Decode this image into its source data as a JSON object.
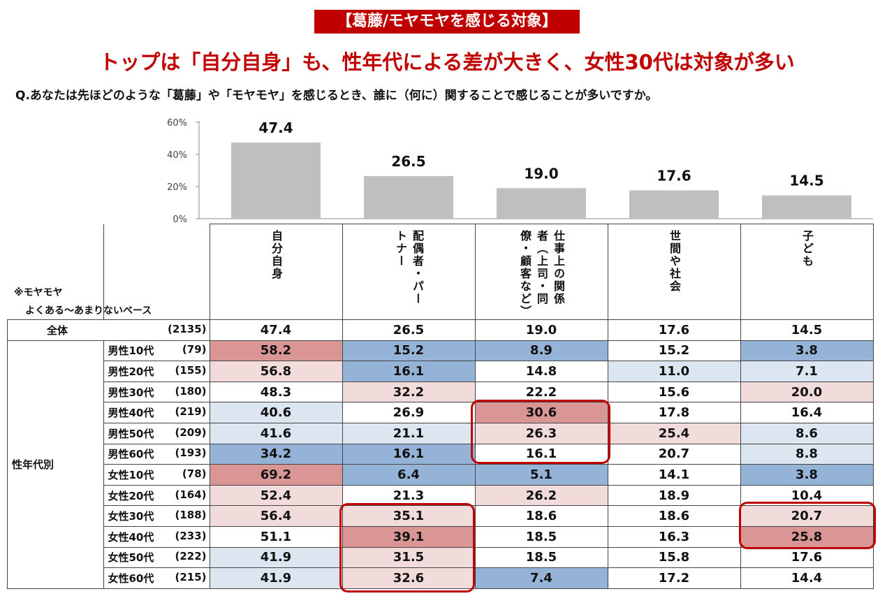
{
  "badge": "【葛藤/モヤモヤを感じる対象】",
  "headline": "トップは「自分自身」も、性年代による差が大きく、女性30代は対象が多い",
  "question": "Q.あなたは先ほどのような「葛藤」や「モヤモヤ」を感じるとき、誰に（何に）関することで感じることが多いですか。",
  "note1": "※モヤモヤ",
  "note2": "よくある～あまりないベース",
  "group_label": "性年代別",
  "colors": {
    "strong_red": "#d99694",
    "light_red": "#f2dcdb",
    "strong_blue": "#95b3d7",
    "light_blue": "#dce6f1",
    "bar": "#bfbfbf",
    "accent": "#c00000"
  },
  "chart_data": {
    "type": "bar",
    "categories": [
      "自分自身",
      "配偶者・パートナー",
      "仕事上の関係者（上司・同僚・顧客など）",
      "世間や社会",
      "子ども"
    ],
    "values": [
      47.4,
      26.5,
      19.0,
      17.6,
      14.5
    ],
    "yticks": [
      "0%",
      "20%",
      "40%",
      "60%"
    ],
    "ylim": [
      0,
      60
    ]
  },
  "table": {
    "columns": [
      "自分自身",
      "配偶者・パートナー",
      "仕事上の関係者（上司・同僚・顧客など）",
      "世間や社会",
      "子ども"
    ],
    "total": {
      "label": "全体",
      "n": "(2135)",
      "values": [
        "47.4",
        "26.5",
        "19.0",
        "17.6",
        "14.5"
      ]
    },
    "rows": [
      {
        "label": "男性10代",
        "n": "(79)",
        "values": [
          "58.2",
          "15.2",
          "8.9",
          "15.2",
          "3.8"
        ],
        "shade": [
          "R",
          "B",
          "B",
          "",
          "B"
        ]
      },
      {
        "label": "男性20代",
        "n": "(155)",
        "values": [
          "56.8",
          "16.1",
          "14.8",
          "11.0",
          "7.1"
        ],
        "shade": [
          "r",
          "B",
          "",
          "b",
          "b"
        ]
      },
      {
        "label": "男性30代",
        "n": "(180)",
        "values": [
          "48.3",
          "32.2",
          "22.2",
          "15.6",
          "20.0"
        ],
        "shade": [
          "",
          "r",
          "",
          "",
          "r"
        ]
      },
      {
        "label": "男性40代",
        "n": "(219)",
        "values": [
          "40.6",
          "26.9",
          "30.6",
          "17.8",
          "16.4"
        ],
        "shade": [
          "b",
          "",
          "R",
          "",
          ""
        ]
      },
      {
        "label": "男性50代",
        "n": "(209)",
        "values": [
          "41.6",
          "21.1",
          "26.3",
          "25.4",
          "8.6"
        ],
        "shade": [
          "b",
          "b",
          "r",
          "r",
          "b"
        ]
      },
      {
        "label": "男性60代",
        "n": "(193)",
        "values": [
          "34.2",
          "16.1",
          "16.1",
          "20.7",
          "8.8"
        ],
        "shade": [
          "B",
          "B",
          "",
          "",
          "b"
        ]
      },
      {
        "label": "女性10代",
        "n": "(78)",
        "values": [
          "69.2",
          "6.4",
          "5.1",
          "14.1",
          "3.8"
        ],
        "shade": [
          "R",
          "B",
          "B",
          "",
          "B"
        ]
      },
      {
        "label": "女性20代",
        "n": "(164)",
        "values": [
          "52.4",
          "21.3",
          "26.2",
          "18.9",
          "10.4"
        ],
        "shade": [
          "r",
          "",
          "r",
          "",
          ""
        ]
      },
      {
        "label": "女性30代",
        "n": "(188)",
        "values": [
          "56.4",
          "35.1",
          "18.6",
          "18.6",
          "20.7"
        ],
        "shade": [
          "r",
          "r",
          "",
          "",
          "r"
        ]
      },
      {
        "label": "女性40代",
        "n": "(233)",
        "values": [
          "51.1",
          "39.1",
          "18.5",
          "16.3",
          "25.8"
        ],
        "shade": [
          "",
          "R",
          "",
          "",
          "R"
        ]
      },
      {
        "label": "女性50代",
        "n": "(222)",
        "values": [
          "41.9",
          "31.5",
          "18.5",
          "15.8",
          "17.6"
        ],
        "shade": [
          "b",
          "r",
          "",
          "",
          ""
        ]
      },
      {
        "label": "女性60代",
        "n": "(215)",
        "values": [
          "41.9",
          "32.6",
          "7.4",
          "17.2",
          "14.4"
        ],
        "shade": [
          "b",
          "r",
          "B",
          "",
          ""
        ]
      }
    ]
  }
}
